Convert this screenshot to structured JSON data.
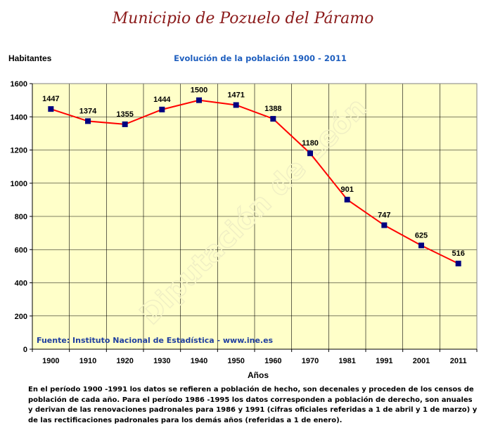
{
  "page": {
    "title": "Municipio de Pozuelo del Páramo",
    "watermark": "Diputación de León",
    "source": "Fuente: Instituto Nacional de Estadística - www.ine.es",
    "footnote": "En el período 1900 -1991 los datos se refieren a población de hecho, son decenales y proceden de los censos de población de cada año. Para el período 1986 -1995 los datos corresponden a población de derecho, son anuales y derivan de las renovaciones padronales para 1986 y 1991 (cifras oficiales referidas a 1 de abril y 1 de marzo) y de las rectificaciones padronales para los demás años (referidas a 1 de enero)."
  },
  "colors": {
    "plot_bg": "#ffffc9",
    "line": "#ff0000",
    "marker": "#000080",
    "title": "#8b1a1a",
    "subtitle": "#1f5fbf",
    "source": "#1f3f9f"
  },
  "chart_data": {
    "type": "line",
    "title": "Evolución de la población 1900 - 2011",
    "xlabel": "Años",
    "ylabel": "Habitantes",
    "categories": [
      "1900",
      "1910",
      "1920",
      "1930",
      "1940",
      "1950",
      "1960",
      "1970",
      "1981",
      "1991",
      "2001",
      "2011"
    ],
    "series": [
      {
        "values": [
          1447,
          1374,
          1355,
          1444,
          1500,
          1471,
          1388,
          1180,
          901,
          747,
          625,
          516
        ]
      }
    ],
    "ylim": [
      0,
      1600
    ],
    "yticks": [
      0,
      200,
      400,
      600,
      800,
      1000,
      1200,
      1400,
      1600
    ],
    "grid": true,
    "legend": "none",
    "data_labels": true
  }
}
